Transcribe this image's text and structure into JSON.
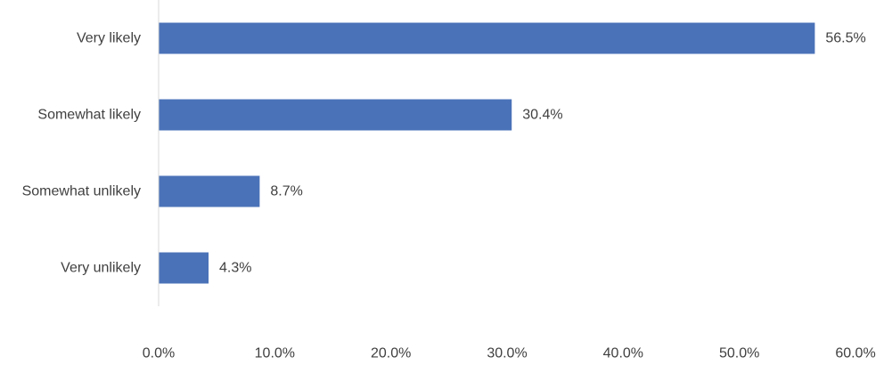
{
  "chart_data": {
    "type": "bar",
    "orientation": "horizontal",
    "categories": [
      "Very likely",
      "Somewhat likely",
      "Somewhat unlikely",
      "Very unlikely"
    ],
    "values": [
      56.5,
      30.4,
      8.7,
      4.3
    ],
    "data_labels": [
      "56.5%",
      "30.4%",
      "8.7%",
      "4.3%"
    ],
    "x_ticks": [
      0,
      10,
      20,
      30,
      40,
      50,
      60
    ],
    "x_tick_labels": [
      "0.0%",
      "10.0%",
      "20.0%",
      "30.0%",
      "40.0%",
      "50.0%",
      "60.0%"
    ],
    "xlim": [
      0,
      60
    ],
    "title": "",
    "xlabel": "",
    "ylabel": "",
    "grid": false,
    "legend": "none",
    "bar_color": "#4a72b8",
    "axis_color": "#d9d9d9",
    "text_color": "#404040"
  }
}
